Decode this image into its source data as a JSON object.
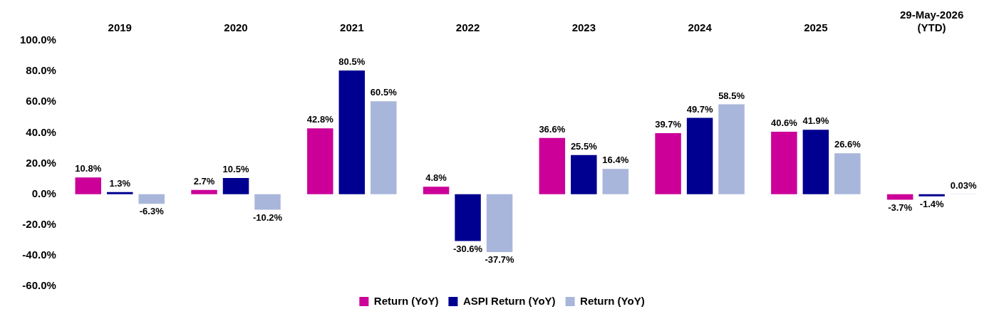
{
  "chart_data": {
    "type": "bar",
    "categories": [
      "2019",
      "2020",
      "2021",
      "2022",
      "2023",
      "2024",
      "2025",
      "29-May-2026 (YTD)"
    ],
    "series": [
      {
        "name": "Return (YoY)",
        "color": "#cc0099",
        "values": [
          10.8,
          2.7,
          42.8,
          4.8,
          36.6,
          39.7,
          40.6,
          -3.7
        ],
        "value_labels": [
          "10.8%",
          "2.7%",
          "42.8%",
          "4.8%",
          "36.6%",
          "39.7%",
          "40.6%",
          "-3.7%"
        ]
      },
      {
        "name": "ASPI Return (YoY)",
        "color": "#000090",
        "values": [
          1.3,
          10.5,
          80.5,
          -30.6,
          25.5,
          49.7,
          41.9,
          -1.4
        ],
        "value_labels": [
          "1.3%",
          "10.5%",
          "80.5%",
          "-30.6%",
          "25.5%",
          "49.7%",
          "41.9%",
          "-1.4%"
        ]
      },
      {
        "name": "Return (YoY)",
        "color": "#a9b6db",
        "values": [
          -6.3,
          -10.2,
          60.5,
          -37.7,
          16.4,
          58.5,
          26.6,
          0.03
        ],
        "value_labels": [
          "-6.3%",
          "-10.2%",
          "60.5%",
          "-37.7%",
          "16.4%",
          "58.5%",
          "26.6%",
          "0.03%"
        ]
      }
    ],
    "ylim": [
      -60,
      100
    ],
    "yticks": [
      {
        "value": -60,
        "label": "-60.0%"
      },
      {
        "value": -40,
        "label": "-40.0%"
      },
      {
        "value": -20,
        "label": "-20.0%"
      },
      {
        "value": 0,
        "label": "0.0%"
      },
      {
        "value": 20,
        "label": "20.0%"
      },
      {
        "value": 40,
        "label": "40.0%"
      },
      {
        "value": 60,
        "label": "60.0%"
      },
      {
        "value": 80,
        "label": "80.0%"
      },
      {
        "value": 100,
        "label": "100.0%"
      }
    ],
    "grid": false,
    "legend": "bottom"
  }
}
